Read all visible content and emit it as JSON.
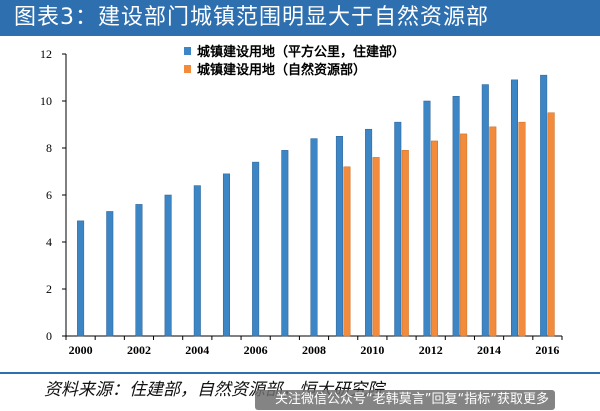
{
  "header": {
    "title": "图表3：建设部门城镇范围明显大于自然资源部",
    "bar_color": "#2e6fb0"
  },
  "footer": {
    "source": "资料来源：住建部，自然资源部，恒大研究院",
    "watermark": "关注微信公众号“老韩莫言”回复“指标”获取更多"
  },
  "chart_data": {
    "type": "bar",
    "categories": [
      "2000",
      "2001",
      "2002",
      "2003",
      "2004",
      "2005",
      "2006",
      "2007",
      "2008",
      "2009",
      "2010",
      "2011",
      "2012",
      "2013",
      "2014",
      "2015",
      "2016"
    ],
    "x_tick_labels": [
      "2000",
      "2002",
      "2004",
      "2006",
      "2008",
      "2010",
      "2012",
      "2014",
      "2016"
    ],
    "series": [
      {
        "name": "城镇建设用地（平方公里，住建部）",
        "color": "#3d86c6",
        "values": [
          4.9,
          5.3,
          5.6,
          6.0,
          6.4,
          6.9,
          7.4,
          7.9,
          8.4,
          8.5,
          8.8,
          9.1,
          10.0,
          10.2,
          10.7,
          10.9,
          11.1
        ]
      },
      {
        "name": "城镇建设用地（自然资源部）",
        "color": "#f28c3c",
        "values": [
          null,
          null,
          null,
          null,
          null,
          null,
          null,
          null,
          null,
          7.2,
          7.6,
          7.9,
          8.3,
          8.6,
          8.9,
          9.1,
          9.5
        ]
      }
    ],
    "ylim": [
      0,
      12
    ],
    "y_ticks": [
      0,
      2,
      4,
      6,
      8,
      10,
      12
    ],
    "grid": false,
    "legend_position": "top-center"
  }
}
